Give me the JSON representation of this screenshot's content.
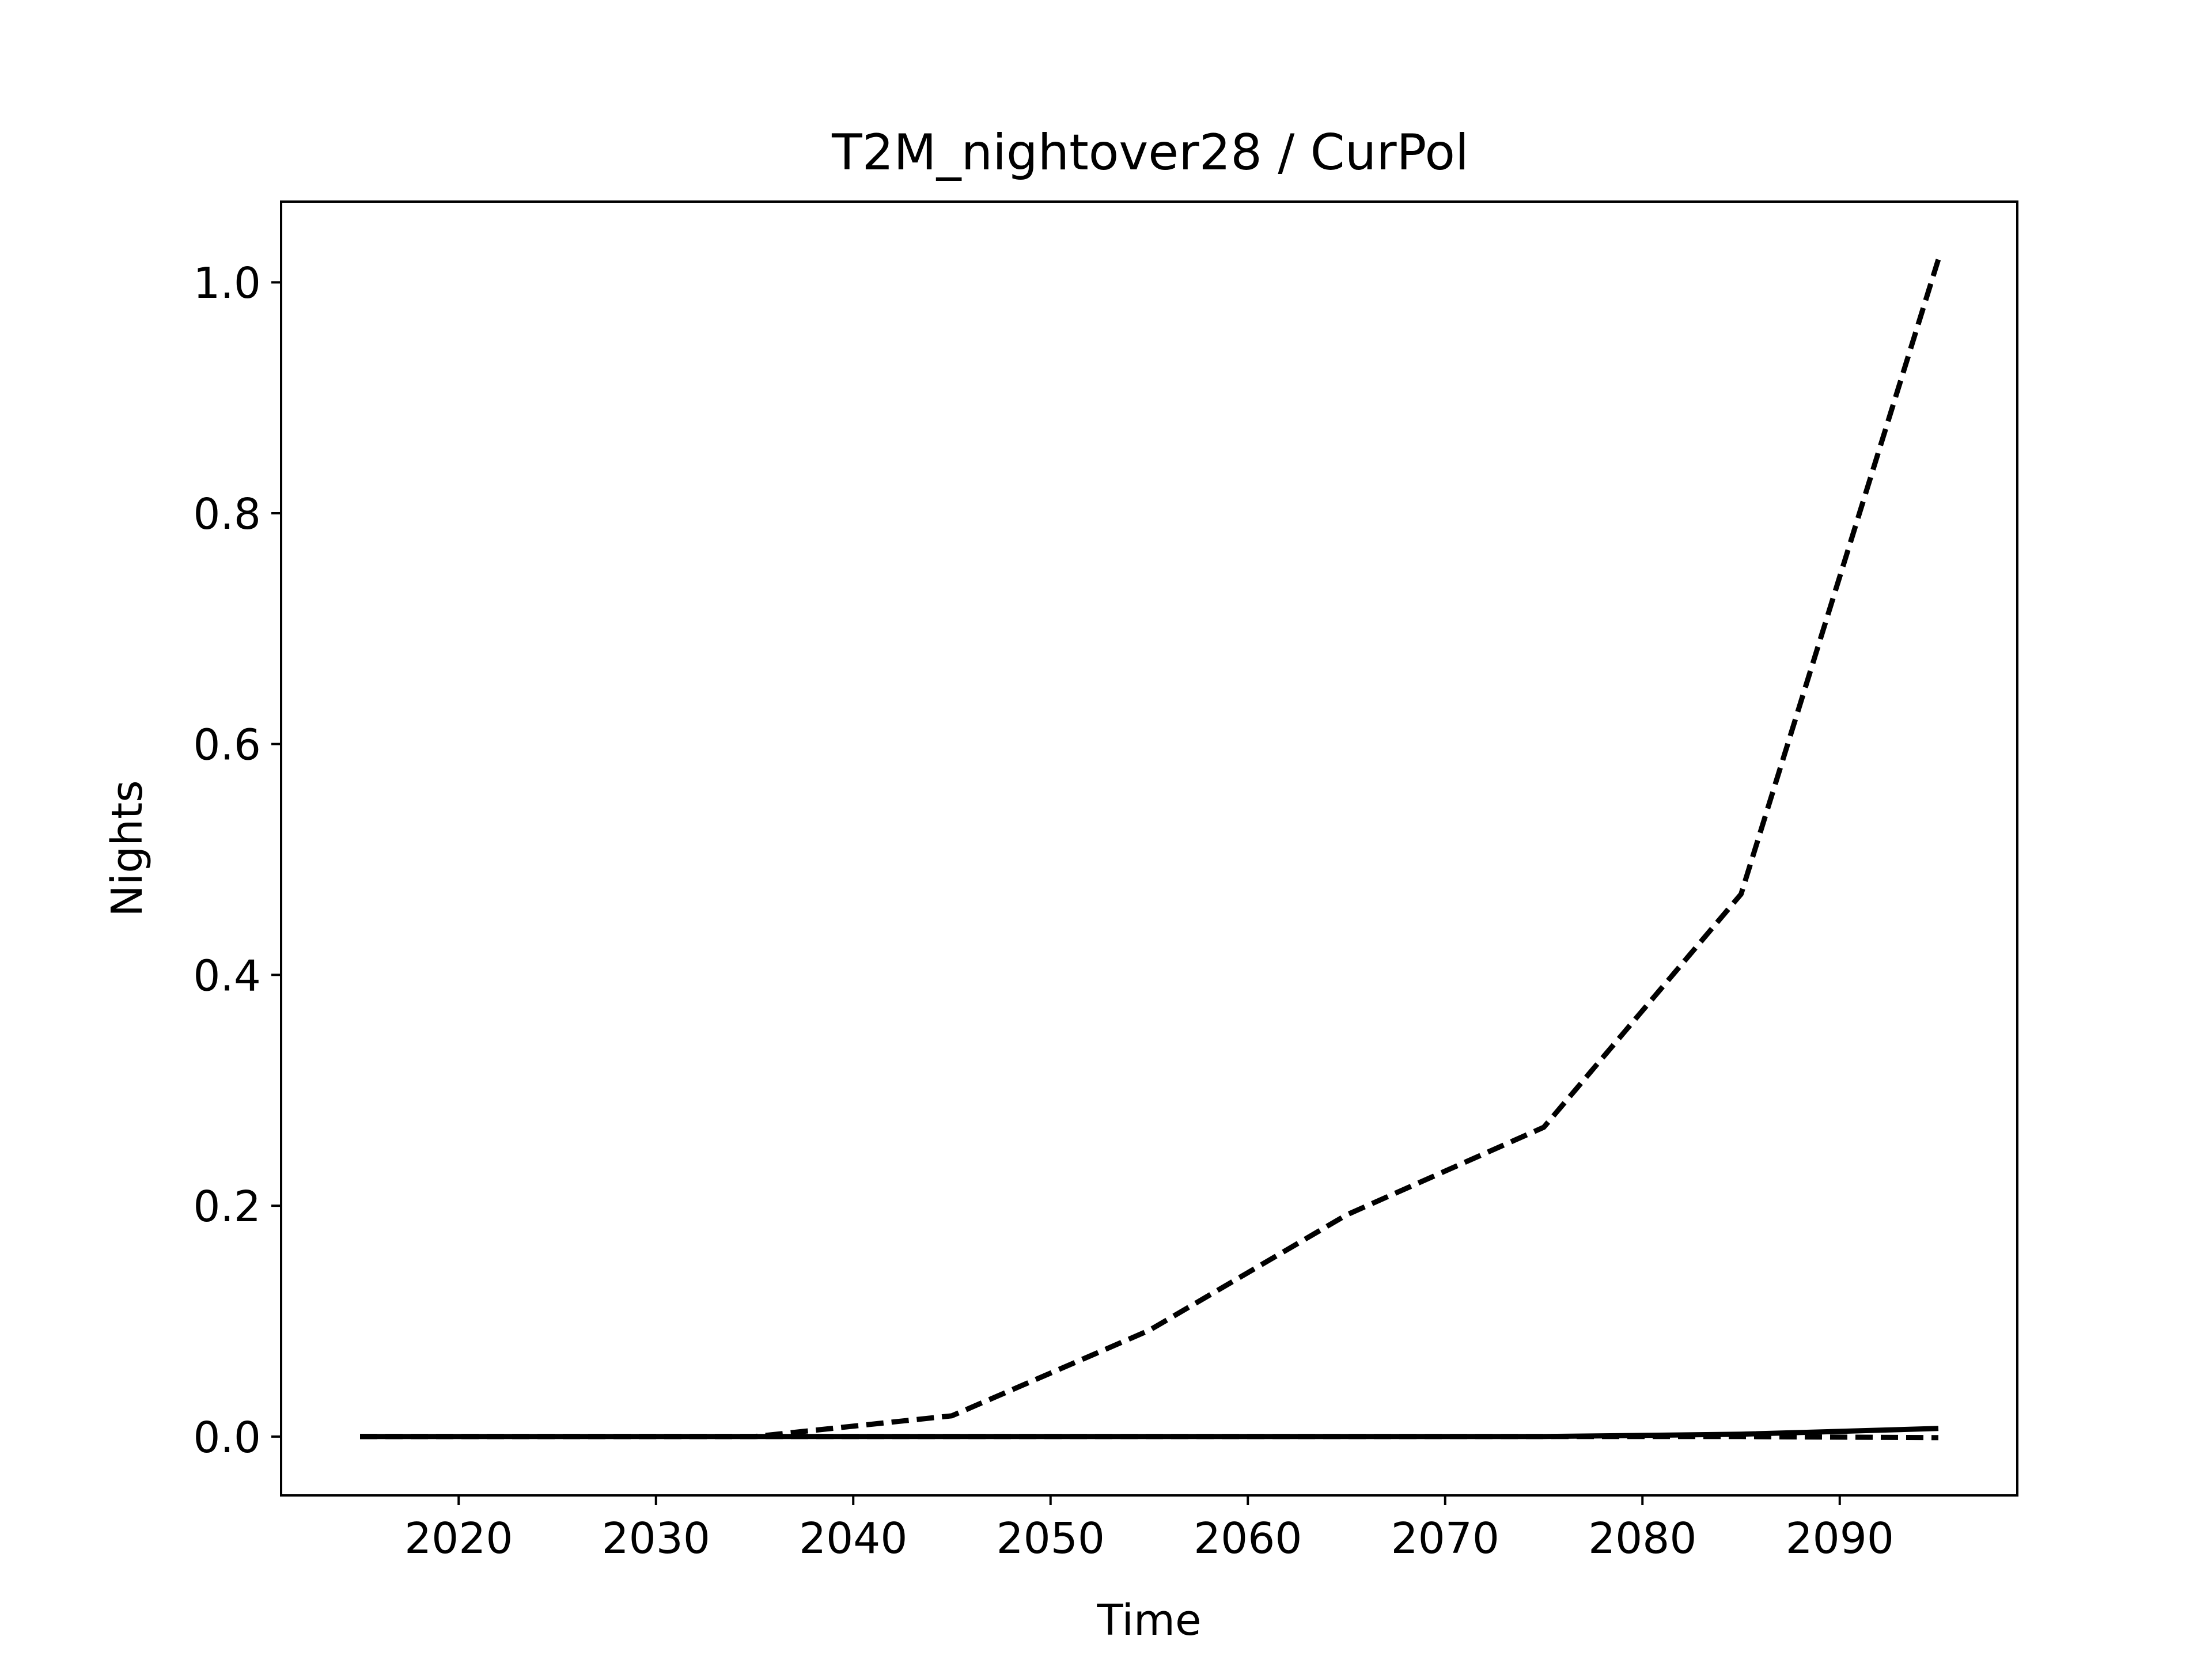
{
  "chart_data": {
    "type": "line",
    "title": "T2M_nightover28 / CurPol",
    "xlabel": "Time",
    "ylabel": "Nights",
    "xlim": [
      2011,
      2099
    ],
    "ylim": [
      -0.051,
      1.07
    ],
    "xticks": [
      2020,
      2030,
      2040,
      2050,
      2060,
      2070,
      2080,
      2090
    ],
    "xtick_labels": [
      "2020",
      "2030",
      "2040",
      "2050",
      "2060",
      "2070",
      "2080",
      "2090"
    ],
    "yticks": [
      0.0,
      0.2,
      0.4,
      0.6,
      0.8,
      1.0
    ],
    "ytick_labels": [
      "0.0",
      "0.2",
      "0.4",
      "0.6",
      "0.8",
      "1.0"
    ],
    "grid": false,
    "x": [
      2015,
      2025,
      2035,
      2045,
      2055,
      2065,
      2075,
      2085,
      2095
    ],
    "series": [
      {
        "style": "dashed",
        "values": [
          0.0,
          0.0,
          0.0,
          0.018,
          0.092,
          0.192,
          0.268,
          0.47,
          1.02
        ]
      },
      {
        "style": "solid",
        "values": [
          0.0,
          0.0,
          0.0,
          0.0,
          0.0,
          0.0,
          0.0,
          0.002,
          0.007
        ]
      },
      {
        "style": "dashed",
        "values": [
          0.0,
          0.0,
          0.0,
          0.0,
          0.0,
          0.0,
          0.0,
          0.0,
          -0.001
        ]
      }
    ],
    "colors": {
      "line": "#000000",
      "background": "#ffffff"
    }
  }
}
